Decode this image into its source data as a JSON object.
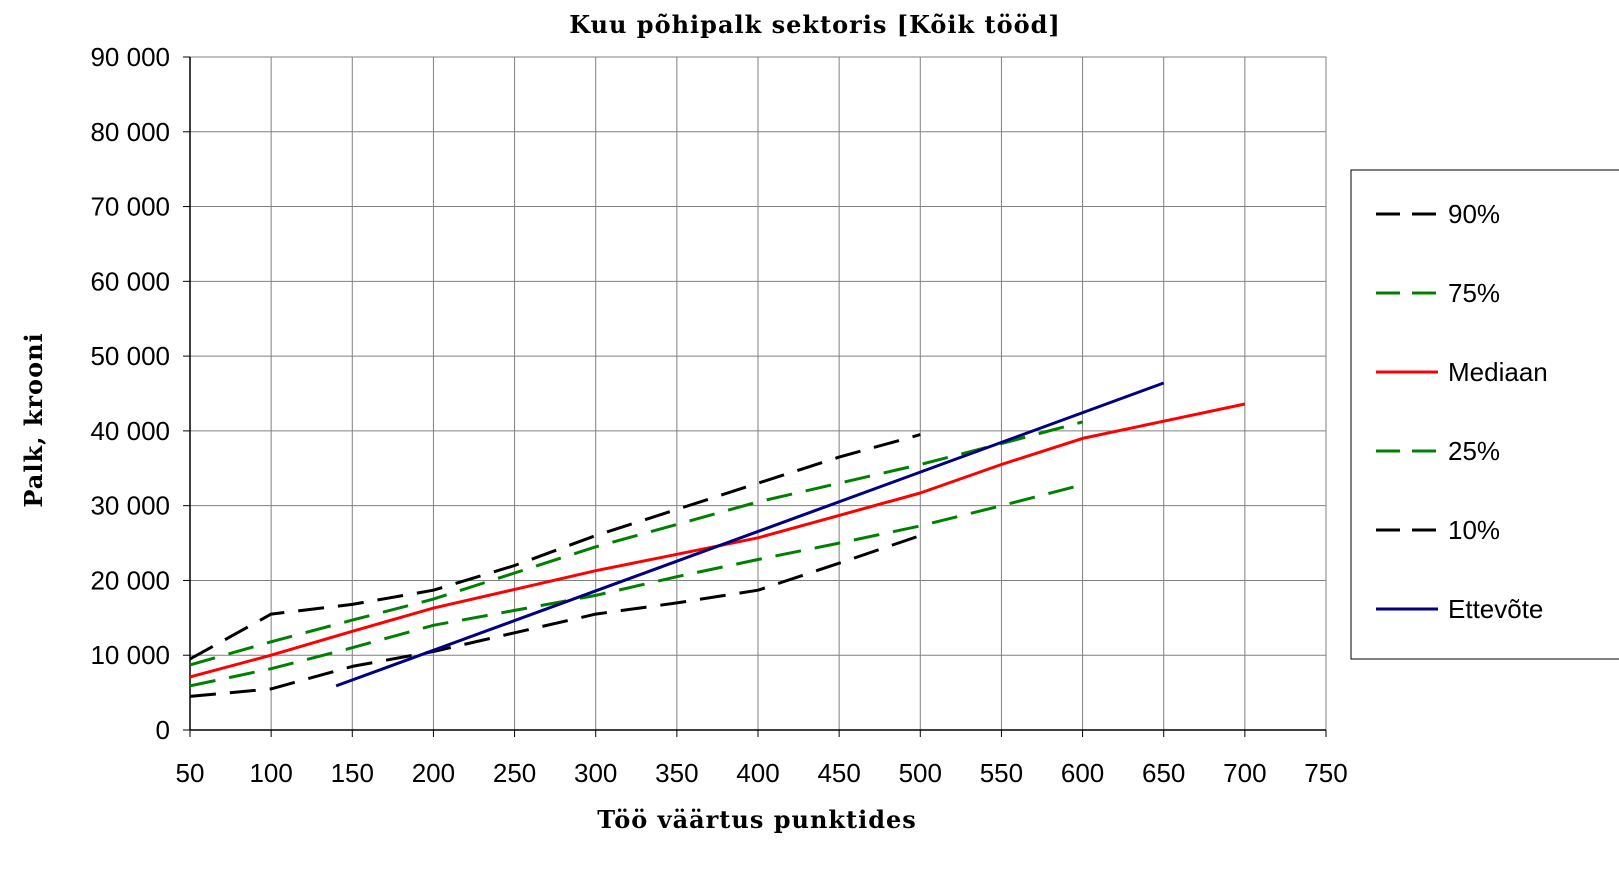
{
  "chart_data": {
    "type": "line",
    "title": "Kuu põhipalk sektoris [Kõik tööd]",
    "xlabel": "Töö väärtus punktides",
    "ylabel": "Palk, krooni",
    "xlim": [
      50,
      750
    ],
    "ylim": [
      0,
      90000
    ],
    "x_ticks": [
      50,
      100,
      150,
      200,
      250,
      300,
      350,
      400,
      450,
      500,
      550,
      600,
      650,
      700,
      750
    ],
    "x_tick_labels": [
      "50",
      "100",
      "150",
      "200",
      "250",
      "300",
      "350",
      "400",
      "450",
      "500",
      "550",
      "600",
      "650",
      "700",
      "750"
    ],
    "y_ticks": [
      0,
      10000,
      20000,
      30000,
      40000,
      50000,
      60000,
      70000,
      80000,
      90000
    ],
    "y_tick_labels": [
      "0",
      "10 000",
      "20 000",
      "30 000",
      "40 000",
      "50 000",
      "60 000",
      "70 000",
      "80 000",
      "90 000"
    ],
    "grid": true,
    "legend_position": "right",
    "series": [
      {
        "name": "90%",
        "color": "#000000",
        "dash": "dashed",
        "points": [
          [
            50,
            9500
          ],
          [
            100,
            15500
          ],
          [
            150,
            16800
          ],
          [
            200,
            18700
          ],
          [
            250,
            22000
          ],
          [
            300,
            26000
          ],
          [
            350,
            29500
          ],
          [
            400,
            33000
          ],
          [
            450,
            36500
          ],
          [
            500,
            39500
          ]
        ]
      },
      {
        "name": "75%",
        "color": "#008000",
        "dash": "dashed",
        "points": [
          [
            50,
            8700
          ],
          [
            100,
            11800
          ],
          [
            150,
            14700
          ],
          [
            200,
            17500
          ],
          [
            250,
            21000
          ],
          [
            300,
            24500
          ],
          [
            350,
            27500
          ],
          [
            400,
            30500
          ],
          [
            450,
            33000
          ],
          [
            500,
            35500
          ],
          [
            550,
            38300
          ],
          [
            600,
            41200
          ]
        ]
      },
      {
        "name": "Mediaan",
        "color": "#ff0000",
        "dash": "solid",
        "points": [
          [
            50,
            7100
          ],
          [
            100,
            10000
          ],
          [
            150,
            13200
          ],
          [
            200,
            16300
          ],
          [
            250,
            18800
          ],
          [
            300,
            21300
          ],
          [
            350,
            23500
          ],
          [
            400,
            25700
          ],
          [
            450,
            28700
          ],
          [
            500,
            31700
          ],
          [
            550,
            35500
          ],
          [
            600,
            39000
          ],
          [
            650,
            41300
          ],
          [
            700,
            43600
          ]
        ]
      },
      {
        "name": "25%",
        "color": "#008000",
        "dash": "dashed",
        "points": [
          [
            50,
            5900
          ],
          [
            100,
            8200
          ],
          [
            150,
            11000
          ],
          [
            200,
            14000
          ],
          [
            250,
            16000
          ],
          [
            300,
            18000
          ],
          [
            350,
            20500
          ],
          [
            400,
            22800
          ],
          [
            450,
            25000
          ],
          [
            500,
            27300
          ],
          [
            550,
            30000
          ],
          [
            600,
            32800
          ]
        ]
      },
      {
        "name": "10%",
        "color": "#000000",
        "dash": "dashed",
        "points": [
          [
            50,
            4500
          ],
          [
            100,
            5500
          ],
          [
            150,
            8500
          ],
          [
            200,
            10500
          ],
          [
            250,
            13000
          ],
          [
            300,
            15500
          ],
          [
            350,
            17000
          ],
          [
            400,
            18700
          ],
          [
            450,
            22300
          ],
          [
            500,
            26000
          ]
        ]
      },
      {
        "name": "Ettevõte",
        "color": "#000080",
        "dash": "solid",
        "points": [
          [
            140,
            5900
          ],
          [
            650,
            46400
          ]
        ]
      }
    ]
  }
}
